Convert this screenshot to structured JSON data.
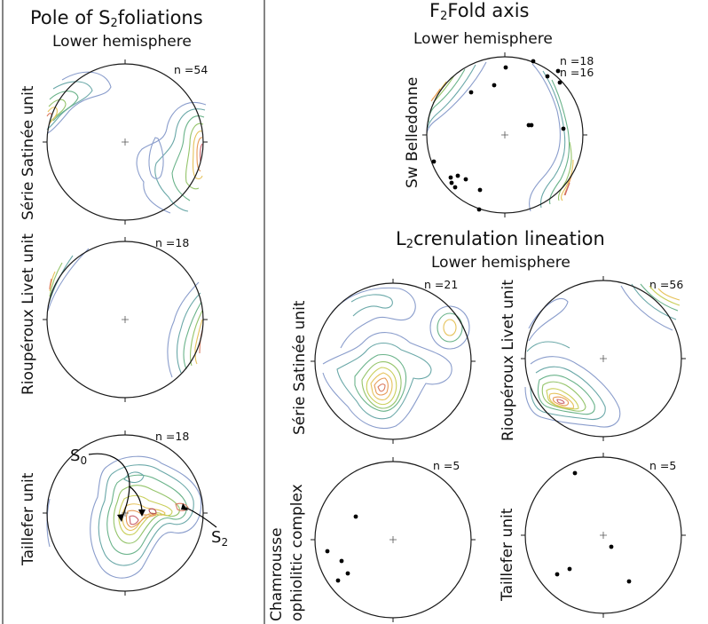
{
  "left_panel": {
    "title_prefix": "Pole of S",
    "title_sub": "2",
    "title_suffix": "foliations",
    "subtitle": "Lower hemisphere"
  },
  "top_right_panel": {
    "title_prefix": "F",
    "title_sub": "2",
    "title_suffix": "Fold axis",
    "subtitle": "Lower hemisphere"
  },
  "bottom_right_panel": {
    "title_prefix": "L",
    "title_sub": "2",
    "title_suffix": "crenulation lineation",
    "subtitle": "Lower hemisphere"
  },
  "stereonets": {
    "s2_serie": {
      "unit_label": "Série Satinée unit",
      "n_label": "n =54"
    },
    "s2_riouperoux": {
      "unit_label": "Rioupéroux Livet unit",
      "n_label": "n =18"
    },
    "s2_taillefer": {
      "unit_label": "Taillefer  unit",
      "n_label": "n =18",
      "annotation_s0_main": "S",
      "annotation_s0_sub": "0",
      "annotation_s2_main": "S",
      "annotation_s2_sub": "2"
    },
    "f2_belledonne": {
      "unit_label": "Sw Belledonne",
      "n_label_1": "n =18",
      "n_label_2": "n =16"
    },
    "l2_serie": {
      "unit_label": "Série Satinée unit",
      "n_label": "n =21"
    },
    "l2_riouperoux": {
      "unit_label": "Rioupéroux Livet unit",
      "n_label": "n =56"
    },
    "l2_chamrousse": {
      "unit_label_line1": "Chamrousse",
      "unit_label_line2": "ophiolitic complex",
      "n_label": "n =5"
    },
    "l2_taillefer": {
      "unit_label": "Taillefer  unit",
      "n_label": "n =5"
    }
  },
  "contour_colors": [
    "#8a9dcc",
    "#6aa8a8",
    "#6ab38a",
    "#94c46a",
    "#c9cf5a",
    "#e6c25a",
    "#e79a55",
    "#db7a5f",
    "#c9606a",
    "#b24a5a"
  ]
}
